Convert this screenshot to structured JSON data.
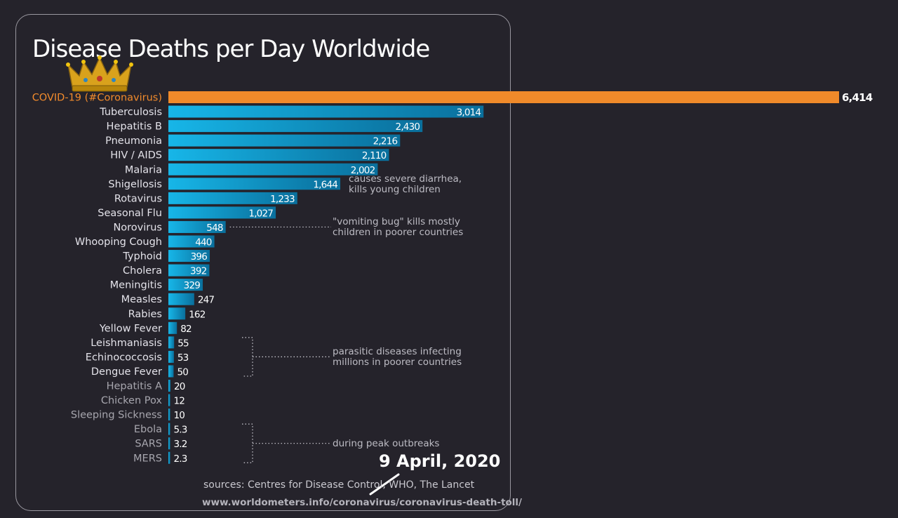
{
  "chart_data": {
    "type": "bar",
    "orientation": "horizontal",
    "title": "Disease Deaths per Day Worldwide",
    "categories": [
      "COVID-19 (#Coronavirus)",
      "Tuberculosis",
      "Hepatitis B",
      "Pneumonia",
      "HIV / AIDS",
      "Malaria",
      "Shigellosis",
      "Rotavirus",
      "Seasonal Flu",
      "Norovirus",
      "Whooping Cough",
      "Typhoid",
      "Cholera",
      "Meningitis",
      "Measles",
      "Rabies",
      "Yellow Fever",
      "Leishmaniasis",
      "Echinococcosis",
      "Dengue Fever",
      "Hepatitis A",
      "Chicken Pox",
      "Sleeping Sickness",
      "Ebola",
      "SARS",
      "MERS"
    ],
    "values": [
      6414,
      3014,
      2430,
      2216,
      2110,
      2002,
      1644,
      1233,
      1027,
      548,
      440,
      396,
      392,
      329,
      247,
      162,
      82,
      55,
      53,
      50,
      20,
      12,
      10,
      5.3,
      3.2,
      2.3
    ],
    "value_labels": [
      "6,414",
      "3,014",
      "2,430",
      "2,216",
      "2,110",
      "2,002",
      "1,644",
      "1,233",
      "1,027",
      "548",
      "440",
      "396",
      "392",
      "329",
      "247",
      "162",
      "82",
      "55",
      "53",
      "50",
      "20",
      "12",
      "10",
      "5.3",
      "3.2",
      "2.3"
    ],
    "xlim": [
      0,
      6414
    ],
    "grid": false,
    "legend": "none",
    "highlight_index": 0,
    "colors": {
      "highlight": "#f08a2a",
      "bar": "#17a6d8",
      "bar_dark": "#0a6f9c",
      "label": "#e4e3ea",
      "label_dim": "#a7a6ae",
      "highlight_label": "#f28b2c"
    },
    "annotations": [
      {
        "text": [
          "causes severe diarrhea,",
          "kills young children"
        ],
        "category": "Shigellosis"
      },
      {
        "text": [
          "\"vomiting bug\" kills mostly",
          "children in poorer countries"
        ],
        "category": "Norovirus"
      },
      {
        "text": [
          "parasitic diseases infecting",
          "millions in poorer countries"
        ],
        "categories": [
          "Leishmaniasis",
          "Echinococcosis",
          "Dengue Fever"
        ]
      },
      {
        "text": [
          "during peak outbreaks"
        ],
        "categories": [
          "Ebola",
          "SARS",
          "MERS"
        ]
      }
    ]
  },
  "crown_icon": "crown-icon",
  "date": "9 April, 2020",
  "sources": "sources: Centres for Disease Control, WHO, The Lancet",
  "url": "www.worldometers.info/coronavirus/coronavirus-death-toll/"
}
